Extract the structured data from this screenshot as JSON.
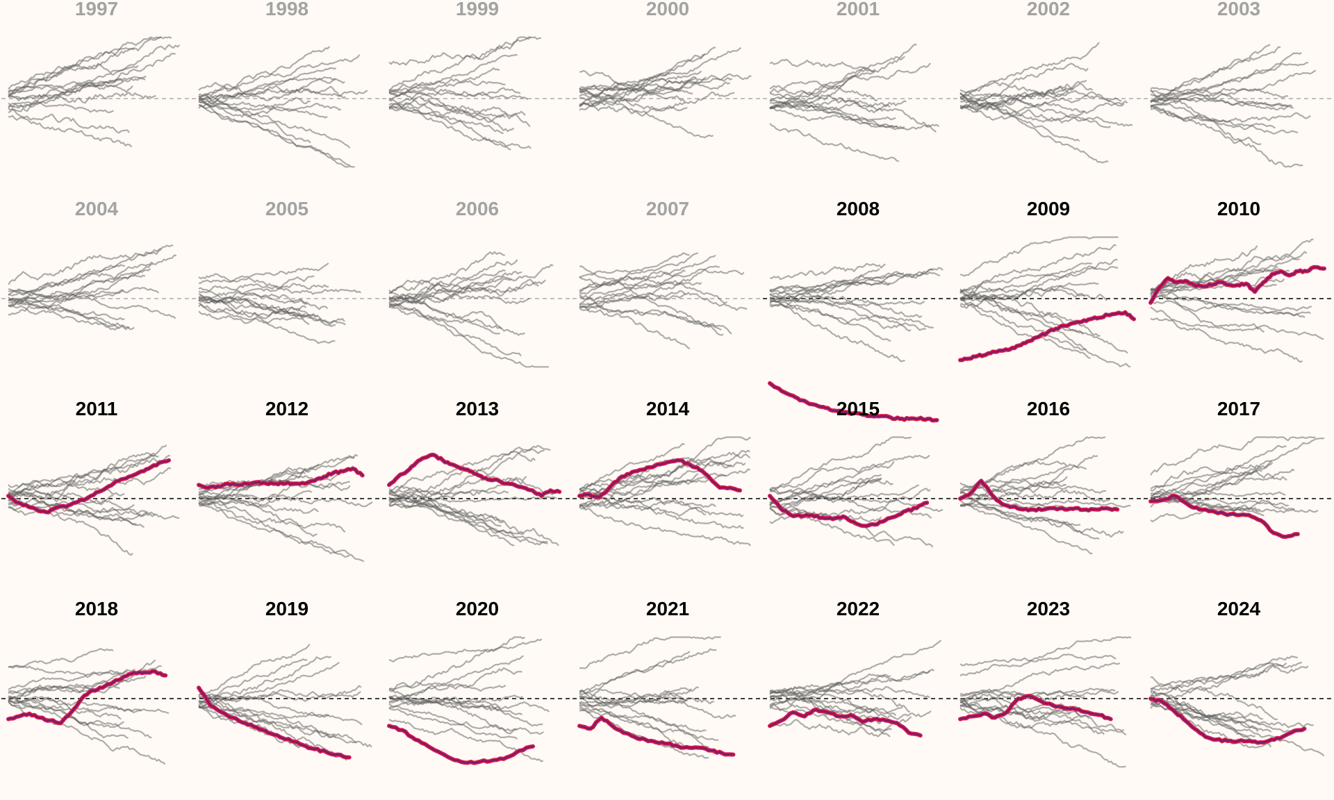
{
  "chart_data": {
    "type": "line",
    "layout": "small-multiples",
    "title": "",
    "xlabel": "",
    "ylabel": "",
    "grid": false,
    "colors": {
      "background": "#fffaf5",
      "context_lines": "#5e5e5e",
      "highlight_fill": "#7a1a6a",
      "highlight_stroke": "#d81b4c",
      "muted_title": "#a3a3a3",
      "active_title": "#000000",
      "baseline": "#000000"
    },
    "baseline_value": 0,
    "ylim": [
      -1,
      1
    ],
    "panels": [
      {
        "year": "1997",
        "highlight": false,
        "lines": 14
      },
      {
        "year": "1998",
        "highlight": false,
        "lines": 14
      },
      {
        "year": "1999",
        "highlight": false,
        "lines": 14
      },
      {
        "year": "2000",
        "highlight": false,
        "lines": 14
      },
      {
        "year": "2001",
        "highlight": false,
        "lines": 14
      },
      {
        "year": "2002",
        "highlight": false,
        "lines": 14
      },
      {
        "year": "2003",
        "highlight": false,
        "lines": 14
      },
      {
        "year": "2004",
        "highlight": false,
        "lines": 14
      },
      {
        "year": "2005",
        "highlight": false,
        "lines": 14
      },
      {
        "year": "2006",
        "highlight": false,
        "lines": 14
      },
      {
        "year": "2007",
        "highlight": false,
        "lines": 14
      },
      {
        "year": "2008",
        "highlight": true,
        "lines": 14,
        "highlight_series": [
          -0.62,
          -0.66,
          -0.7,
          -0.73,
          -0.76,
          -0.78,
          -0.8,
          -0.82,
          -0.83,
          -0.84,
          -0.85,
          -0.86,
          -0.86,
          -0.87,
          -0.88,
          -0.88,
          -0.88,
          -0.88,
          -0.89
        ]
      },
      {
        "year": "2009",
        "highlight": true,
        "lines": 14,
        "highlight_series": [
          -0.45,
          -0.44,
          -0.42,
          -0.41,
          -0.39,
          -0.38,
          -0.36,
          -0.34,
          -0.31,
          -0.28,
          -0.25,
          -0.22,
          -0.2,
          -0.18,
          -0.17,
          -0.15,
          -0.14,
          -0.12,
          -0.11,
          -0.1,
          -0.15
        ]
      },
      {
        "year": "2010",
        "highlight": true,
        "lines": 14,
        "highlight_series": [
          -0.03,
          0.08,
          0.15,
          0.12,
          0.13,
          0.1,
          0.09,
          0.1,
          0.12,
          0.1,
          0.1,
          0.11,
          0.05,
          0.12,
          0.18,
          0.2,
          0.17,
          0.2,
          0.2,
          0.23,
          0.22
        ]
      },
      {
        "year": "2011",
        "highlight": true,
        "lines": 14,
        "highlight_series": [
          0.02,
          -0.03,
          -0.06,
          -0.09,
          -0.1,
          -0.06,
          -0.05,
          -0.02,
          0.01,
          0.05,
          0.09,
          0.13,
          0.16,
          0.19,
          0.22,
          0.26,
          0.28
        ]
      },
      {
        "year": "2012",
        "highlight": true,
        "lines": 14,
        "highlight_series": [
          0.1,
          0.08,
          0.09,
          0.11,
          0.1,
          0.11,
          0.12,
          0.11,
          0.11,
          0.11,
          0.11,
          0.11,
          0.13,
          0.16,
          0.19,
          0.2,
          0.22,
          0.17
        ]
      },
      {
        "year": "2013",
        "highlight": true,
        "lines": 14,
        "highlight_series": [
          0.1,
          0.16,
          0.2,
          0.26,
          0.3,
          0.32,
          0.28,
          0.25,
          0.22,
          0.2,
          0.17,
          0.14,
          0.14,
          0.11,
          0.1,
          0.08,
          0.06,
          0.02,
          0.06,
          0.05
        ]
      },
      {
        "year": "2014",
        "highlight": true,
        "lines": 14,
        "highlight_series": [
          0.02,
          0.03,
          0.01,
          0.08,
          0.15,
          0.18,
          0.21,
          0.23,
          0.25,
          0.27,
          0.28,
          0.25,
          0.21,
          0.15,
          0.08,
          0.08,
          0.06
        ]
      },
      {
        "year": "2015",
        "highlight": true,
        "lines": 14,
        "highlight_series": [
          0.02,
          -0.07,
          -0.12,
          -0.13,
          -0.12,
          -0.14,
          -0.15,
          -0.13,
          -0.17,
          -0.2,
          -0.19,
          -0.16,
          -0.13,
          -0.09,
          -0.07,
          -0.03
        ]
      },
      {
        "year": "2016",
        "highlight": true,
        "lines": 14,
        "highlight_series": [
          0.0,
          0.04,
          0.13,
          0.03,
          -0.04,
          -0.06,
          -0.08,
          -0.08,
          -0.08,
          -0.07,
          -0.08,
          -0.07,
          -0.08,
          -0.08,
          -0.07,
          -0.08
        ]
      },
      {
        "year": "2017",
        "highlight": true,
        "lines": 14,
        "highlight_series": [
          -0.02,
          -0.01,
          0.02,
          -0.04,
          -0.08,
          -0.09,
          -0.11,
          -0.12,
          -0.12,
          -0.16,
          -0.25,
          -0.28,
          -0.26
        ]
      },
      {
        "year": "2018",
        "highlight": true,
        "lines": 14,
        "highlight_series": [
          -0.15,
          -0.13,
          -0.11,
          -0.14,
          -0.16,
          -0.18,
          -0.1,
          0.0,
          0.06,
          0.08,
          0.12,
          0.16,
          0.19,
          0.19,
          0.2,
          0.17
        ]
      },
      {
        "year": "2019",
        "highlight": true,
        "lines": 14,
        "highlight_series": [
          0.08,
          -0.05,
          -0.1,
          -0.14,
          -0.18,
          -0.21,
          -0.25,
          -0.28,
          -0.31,
          -0.34,
          -0.37,
          -0.39,
          -0.41,
          -0.43
        ]
      },
      {
        "year": "2020",
        "highlight": true,
        "lines": 14,
        "highlight_series": [
          -0.2,
          -0.23,
          -0.3,
          -0.35,
          -0.4,
          -0.45,
          -0.47,
          -0.46,
          -0.45,
          -0.43,
          -0.38,
          -0.35
        ]
      },
      {
        "year": "2021",
        "highlight": true,
        "lines": 14,
        "highlight_series": [
          -0.2,
          -0.22,
          -0.14,
          -0.2,
          -0.25,
          -0.28,
          -0.3,
          -0.32,
          -0.33,
          -0.35,
          -0.36,
          -0.36,
          -0.38,
          -0.4,
          -0.41
        ]
      },
      {
        "year": "2022",
        "highlight": true,
        "lines": 14,
        "highlight_series": [
          -0.2,
          -0.16,
          -0.1,
          -0.13,
          -0.08,
          -0.1,
          -0.13,
          -0.12,
          -0.17,
          -0.15,
          -0.16,
          -0.18,
          -0.25,
          -0.27
        ]
      },
      {
        "year": "2023",
        "highlight": true,
        "lines": 14,
        "highlight_series": [
          -0.15,
          -0.13,
          -0.11,
          -0.14,
          -0.1,
          0.0,
          0.02,
          -0.02,
          -0.05,
          -0.07,
          -0.08,
          -0.1,
          -0.12,
          -0.15
        ]
      },
      {
        "year": "2024",
        "highlight": true,
        "lines": 14,
        "highlight_series": [
          0.0,
          -0.02,
          -0.08,
          -0.15,
          -0.22,
          -0.28,
          -0.3,
          -0.31,
          -0.31,
          -0.31,
          -0.32,
          -0.3,
          -0.28,
          -0.24,
          -0.22
        ]
      }
    ]
  }
}
